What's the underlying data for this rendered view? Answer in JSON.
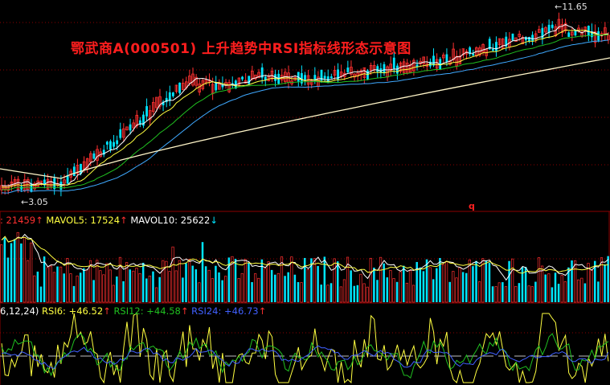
{
  "title": "鄂武商A(000501) 上升趋势中RSI指标线形态示意图",
  "price_panel": {
    "high_label": "11.65",
    "low_label": "3.05",
    "marker": "q"
  },
  "volume_panel": {
    "vol_value": ": 21459",
    "vol_arrow": "↑",
    "mavol5_label": "MAVOL5:",
    "mavol5_value": "17524",
    "mavol5_arrow": "↑",
    "mavol10_label": "MAVOL10:",
    "mavol10_value": "25622",
    "mavol10_arrow": "↓"
  },
  "rsi_panel": {
    "params": "6,12,24)",
    "rsi6_label": "RSI6:",
    "rsi6_value": "+46.52",
    "rsi6_arrow": "↑",
    "rsi12_label": "RSI12:",
    "rsi12_value": "+44.58",
    "rsi12_arrow": "↑",
    "rsi24_label": "RSI24:",
    "rsi24_value": "+46.73",
    "rsi24_arrow": "↑"
  },
  "colors": {
    "background": "#000000",
    "up": "#ff3030",
    "down": "#00e5ff",
    "ma_white": "#ffffff",
    "ma_yellow": "#ffff40",
    "ma_green": "#20c020",
    "ma_blue": "#3fa9ff",
    "ma_long": "#fff5c8",
    "rsi6": "#ffff40",
    "rsi12": "#20c020",
    "rsi24": "#4060ff",
    "grid": "#8b0000",
    "title": "#ff1e1e"
  },
  "chart_data": [
    {
      "type": "candlestick",
      "title": "鄂武商A(000501) 上升趋势中RSI指标线形态示意图",
      "y_min": 3.05,
      "y_max": 11.65,
      "series": [
        "MA5",
        "MA10",
        "MA20",
        "MA30",
        "MA60"
      ]
    },
    {
      "type": "bar",
      "series": [
        {
          "name": "VOL",
          "last": 21459
        },
        {
          "name": "MAVOL5",
          "last": 17524
        },
        {
          "name": "MAVOL10",
          "last": 25622
        }
      ]
    },
    {
      "type": "line",
      "series": [
        {
          "name": "RSI6",
          "last": 46.52
        },
        {
          "name": "RSI12",
          "last": 44.58
        },
        {
          "name": "RSI24",
          "last": 46.73
        }
      ]
    }
  ]
}
